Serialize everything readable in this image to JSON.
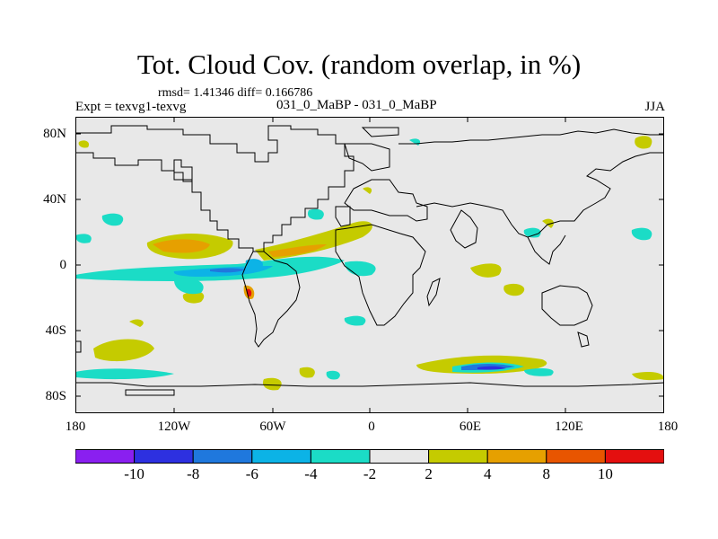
{
  "title": "Tot. Cloud Cov. (random overlap, in %)",
  "stats": "rmsd= 1.41346 diff= 0.166786",
  "experiment": "Expt = texvg1-texvg",
  "difference": "031_0_MaBP - 031_0_MaBP",
  "season": "JJA",
  "lat_ticks": [
    "80N",
    "40N",
    "0",
    "40S",
    "80S"
  ],
  "lon_ticks": [
    "180",
    "120W",
    "60W",
    "0",
    "60E",
    "120E",
    "180"
  ],
  "colorbar": {
    "colors": [
      "#8a1ff0",
      "#2d30e0",
      "#1f78dd",
      "#0cb3e6",
      "#1bdcc6",
      "#e8e8e8",
      "#c5cb00",
      "#e6a000",
      "#e85500",
      "#e40f0f"
    ],
    "labels": [
      "-10",
      "-8",
      "-6",
      "-4",
      "-2",
      "2",
      "4",
      "8",
      "10"
    ]
  },
  "colors": {
    "background": "#e8e8e8",
    "coastline": "#000000"
  }
}
